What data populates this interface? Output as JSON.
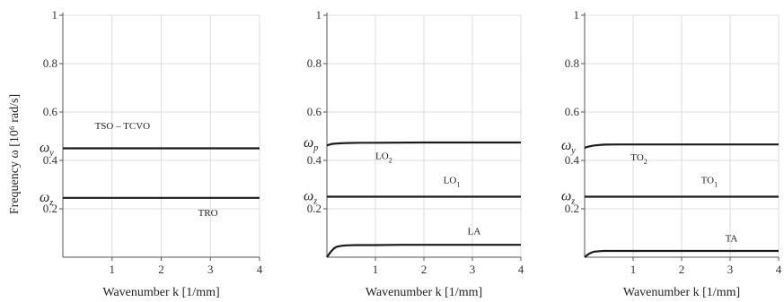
{
  "y_axis_label": "Frequency ω [10⁶ rad/s]",
  "chart_data": [
    {
      "type": "line",
      "xlabel": "Wavenumber k [1/mm]",
      "xlim": [
        0,
        4
      ],
      "ylim": [
        0,
        1
      ],
      "x_ticks": [
        "1",
        "2",
        "3",
        "4"
      ],
      "y_ticks": [
        "0.2",
        "0.4",
        "0.6",
        "0.8",
        "1"
      ],
      "grid": true,
      "omega_markers": [
        {
          "sym": "ω",
          "sub": "y",
          "y": 0.45
        },
        {
          "sym": "ω",
          "sub": "z",
          "y": 0.245
        }
      ],
      "series": [
        {
          "x": [
            0,
            0.5,
            1,
            1.5,
            2,
            2.5,
            3,
            3.5,
            4
          ],
          "y": [
            0.45,
            0.45,
            0.45,
            0.45,
            0.45,
            0.45,
            0.45,
            0.45,
            0.45
          ]
        },
        {
          "x": [
            0,
            0.5,
            1,
            1.5,
            2,
            2.5,
            3,
            3.5,
            4
          ],
          "y": [
            0.245,
            0.245,
            0.245,
            0.245,
            0.245,
            0.245,
            0.245,
            0.245,
            0.245
          ]
        }
      ],
      "annotations": [
        {
          "text": "TSO – TCVO",
          "sub": "",
          "x": 0.65,
          "y": 0.53
        },
        {
          "text": "TRO",
          "sub": "",
          "x": 2.75,
          "y": 0.17
        }
      ]
    },
    {
      "type": "line",
      "xlabel": "Wavenumber k [1/mm]",
      "xlim": [
        0,
        4
      ],
      "ylim": [
        0,
        1
      ],
      "x_ticks": [
        "1",
        "2",
        "3",
        "4"
      ],
      "y_ticks": [
        "0.2",
        "0.4",
        "0.6",
        "0.8",
        "1"
      ],
      "grid": true,
      "omega_markers": [
        {
          "sym": "ω",
          "sub": "p",
          "y": 0.47
        },
        {
          "sym": "ω",
          "sub": "z",
          "y": 0.25
        }
      ],
      "series": [
        {
          "x": [
            0,
            0.05,
            0.1,
            0.2,
            0.4,
            0.7,
            1,
            2,
            3,
            4
          ],
          "y": [
            0.462,
            0.465,
            0.468,
            0.47,
            0.472,
            0.473,
            0.473,
            0.474,
            0.474,
            0.474
          ]
        },
        {
          "x": [
            0,
            0.5,
            1,
            1.5,
            2,
            2.5,
            3,
            3.5,
            4
          ],
          "y": [
            0.25,
            0.25,
            0.25,
            0.25,
            0.25,
            0.25,
            0.25,
            0.25,
            0.25
          ]
        },
        {
          "x": [
            0,
            0.05,
            0.1,
            0.15,
            0.2,
            0.3,
            0.4,
            0.6,
            0.8,
            1,
            1.5,
            2,
            3,
            4
          ],
          "y": [
            0,
            0.014,
            0.027,
            0.037,
            0.043,
            0.047,
            0.049,
            0.05,
            0.05,
            0.05,
            0.051,
            0.051,
            0.051,
            0.051
          ]
        }
      ],
      "annotations": [
        {
          "text": "LO",
          "sub": "2",
          "x": 1.0,
          "y": 0.405
        },
        {
          "text": "LO",
          "sub": "1",
          "x": 2.4,
          "y": 0.305
        },
        {
          "text": "LA",
          "sub": "",
          "x": 2.9,
          "y": 0.095
        }
      ]
    },
    {
      "type": "line",
      "xlabel": "Wavenumber k [1/mm]",
      "xlim": [
        0,
        4
      ],
      "ylim": [
        0,
        1
      ],
      "x_ticks": [
        "1",
        "2",
        "3",
        "4"
      ],
      "y_ticks": [
        "0.2",
        "0.4",
        "0.6",
        "0.8",
        "1"
      ],
      "grid": true,
      "omega_markers": [
        {
          "sym": "ω",
          "sub": "y",
          "y": 0.46
        },
        {
          "sym": "ω",
          "sub": "z",
          "y": 0.25
        }
      ],
      "series": [
        {
          "x": [
            0,
            0.05,
            0.1,
            0.2,
            0.4,
            0.7,
            1,
            2,
            3,
            4
          ],
          "y": [
            0.452,
            0.455,
            0.458,
            0.462,
            0.465,
            0.466,
            0.466,
            0.466,
            0.466,
            0.466
          ]
        },
        {
          "x": [
            0,
            0.5,
            1,
            1.5,
            2,
            2.5,
            3,
            3.5,
            4
          ],
          "y": [
            0.25,
            0.25,
            0.25,
            0.25,
            0.25,
            0.25,
            0.25,
            0.25,
            0.25
          ]
        },
        {
          "x": [
            0,
            0.05,
            0.1,
            0.15,
            0.2,
            0.3,
            0.4,
            0.6,
            0.8,
            1,
            2,
            3,
            4
          ],
          "y": [
            0,
            0.008,
            0.015,
            0.02,
            0.023,
            0.025,
            0.026,
            0.026,
            0.026,
            0.026,
            0.026,
            0.026,
            0.026
          ]
        }
      ],
      "annotations": [
        {
          "text": "TO",
          "sub": "2",
          "x": 0.95,
          "y": 0.4
        },
        {
          "text": "TO",
          "sub": "1",
          "x": 2.4,
          "y": 0.305
        },
        {
          "text": "TA",
          "sub": "",
          "x": 2.9,
          "y": 0.065
        }
      ]
    }
  ]
}
